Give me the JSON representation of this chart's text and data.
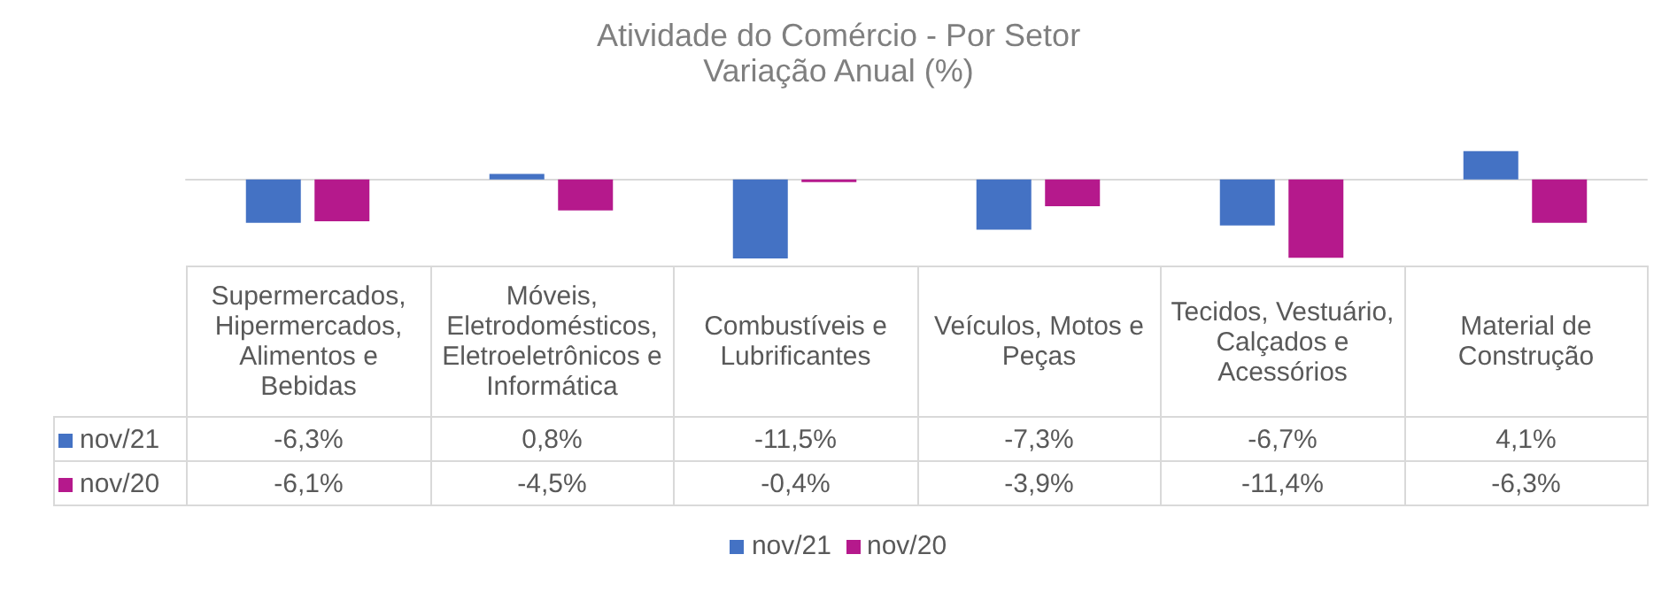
{
  "chart_data": {
    "type": "bar",
    "title": "Atividade do Comércio - Por Setor",
    "subtitle": "Variação Anual (%)",
    "categories": [
      "Supermercados, Hipermercados, Alimentos e Bebidas",
      "Móveis, Eletrodomésticos, Eletroeletrônicos e Informática",
      "Combustíveis e Lubrificantes",
      "Veículos, Motos e Peças",
      "Tecidos, Vestuário, Calçados e Acessórios",
      "Material de Construção"
    ],
    "series": [
      {
        "name": "nov/21",
        "color": "#4472c4",
        "values": [
          -6.3,
          0.8,
          -11.5,
          -7.3,
          -6.7,
          4.1
        ],
        "value_labels": [
          "-6,3%",
          "0,8%",
          "-11,5%",
          "-7,3%",
          "-6,7%",
          "4,1%"
        ]
      },
      {
        "name": "nov/20",
        "color": "#b5198c",
        "values": [
          -6.1,
          -4.5,
          -0.4,
          -3.9,
          -11.4,
          -6.3
        ],
        "value_labels": [
          "-6,1%",
          "-4,5%",
          "-0,4%",
          "-3,9%",
          "-11,4%",
          "-6,3%"
        ]
      }
    ],
    "legend": "bottom"
  }
}
